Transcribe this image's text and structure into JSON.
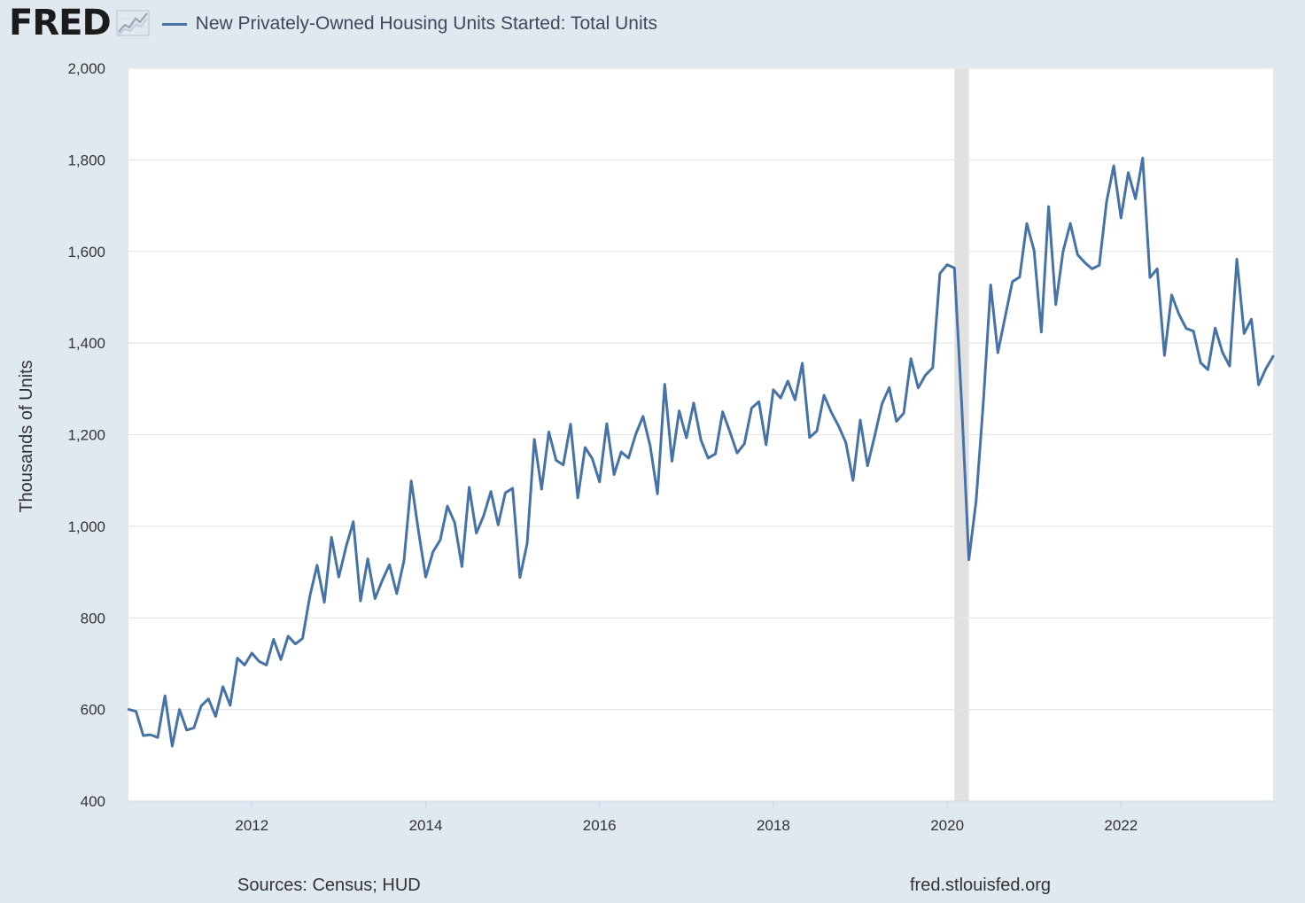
{
  "header": {
    "logo_text": "FRED",
    "series_label": "New Privately-Owned Housing Units Started: Total Units"
  },
  "colors": {
    "line": "#4572a7",
    "background": "#e1e9f0",
    "plot_background": "#ffffff",
    "grid": "#e6e6e6",
    "recession": "#e1e1e1",
    "text": "#333333"
  },
  "footer": {
    "source": "Sources: Census; HUD",
    "url": "fred.stlouisfed.org"
  },
  "chart_data": {
    "type": "line",
    "title": "New Privately-Owned Housing Units Started: Total Units",
    "xlabel": "",
    "ylabel": "Thousands of Units",
    "ylim": [
      400,
      2000
    ],
    "yticks": [
      400,
      600,
      800,
      1000,
      1200,
      1400,
      1600,
      1800,
      2000
    ],
    "ytick_labels": [
      "400",
      "600",
      "800",
      "1,000",
      "1,200",
      "1,400",
      "1,600",
      "1,800",
      "2,000"
    ],
    "xlim": [
      2010.58,
      2023.75
    ],
    "xticks": [
      2012,
      2014,
      2016,
      2018,
      2020,
      2022
    ],
    "xtick_labels": [
      "2012",
      "2014",
      "2016",
      "2018",
      "2020",
      "2022"
    ],
    "recessions": [
      {
        "start": 2020.083,
        "end": 2020.25
      }
    ],
    "grid": true,
    "frequency": "monthly",
    "start": "2010-08",
    "series": [
      {
        "name": "New Privately-Owned Housing Units Started: Total Units",
        "values": [
          600,
          596,
          543,
          545,
          539,
          630,
          520,
          600,
          555,
          560,
          608,
          623,
          585,
          650,
          609,
          712,
          697,
          723,
          705,
          697,
          753,
          709,
          760,
          743,
          755,
          847,
          915,
          834,
          976,
          889,
          955,
          1010,
          837,
          929,
          842,
          882,
          916,
          853,
          925,
          1099,
          990,
          889,
          944,
          970,
          1044,
          1008,
          912,
          1085,
          985,
          1023,
          1076,
          1003,
          1073,
          1083,
          888,
          962,
          1190,
          1081,
          1206,
          1144,
          1134,
          1223,
          1062,
          1172,
          1148,
          1097,
          1224,
          1113,
          1162,
          1149,
          1201,
          1240,
          1175,
          1071,
          1310,
          1142,
          1252,
          1193,
          1269,
          1188,
          1149,
          1158,
          1250,
          1206,
          1160,
          1180,
          1258,
          1272,
          1178,
          1298,
          1280,
          1317,
          1276,
          1356,
          1194,
          1208,
          1286,
          1249,
          1219,
          1183,
          1100,
          1232,
          1132,
          1198,
          1267,
          1303,
          1229,
          1247,
          1366,
          1302,
          1330,
          1346,
          1552,
          1571,
          1564,
          1267,
          927,
          1056,
          1273,
          1527,
          1379,
          1457,
          1534,
          1544,
          1661,
          1602,
          1424,
          1698,
          1484,
          1600,
          1661,
          1593,
          1576,
          1562,
          1570,
          1708,
          1787,
          1673,
          1772,
          1715,
          1804,
          1543,
          1562,
          1373,
          1505,
          1463,
          1432,
          1426,
          1357,
          1342,
          1433,
          1380,
          1350,
          1583,
          1421,
          1452,
          1309,
          1344,
          1371
        ]
      }
    ]
  }
}
